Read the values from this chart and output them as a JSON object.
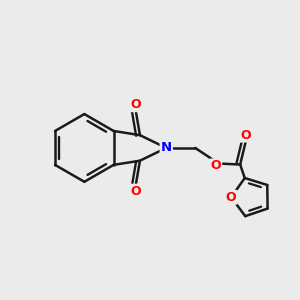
{
  "bg_color": "#ebebeb",
  "bond_color": "#1a1a1a",
  "N_color": "#0000ff",
  "O_color": "#ff0000",
  "bond_width": 1.8,
  "figsize": [
    3.0,
    3.0
  ],
  "dpi": 100,
  "xlim": [
    -1.1,
    1.05
  ],
  "ylim": [
    -0.75,
    0.72
  ],
  "font_size": 9.5
}
